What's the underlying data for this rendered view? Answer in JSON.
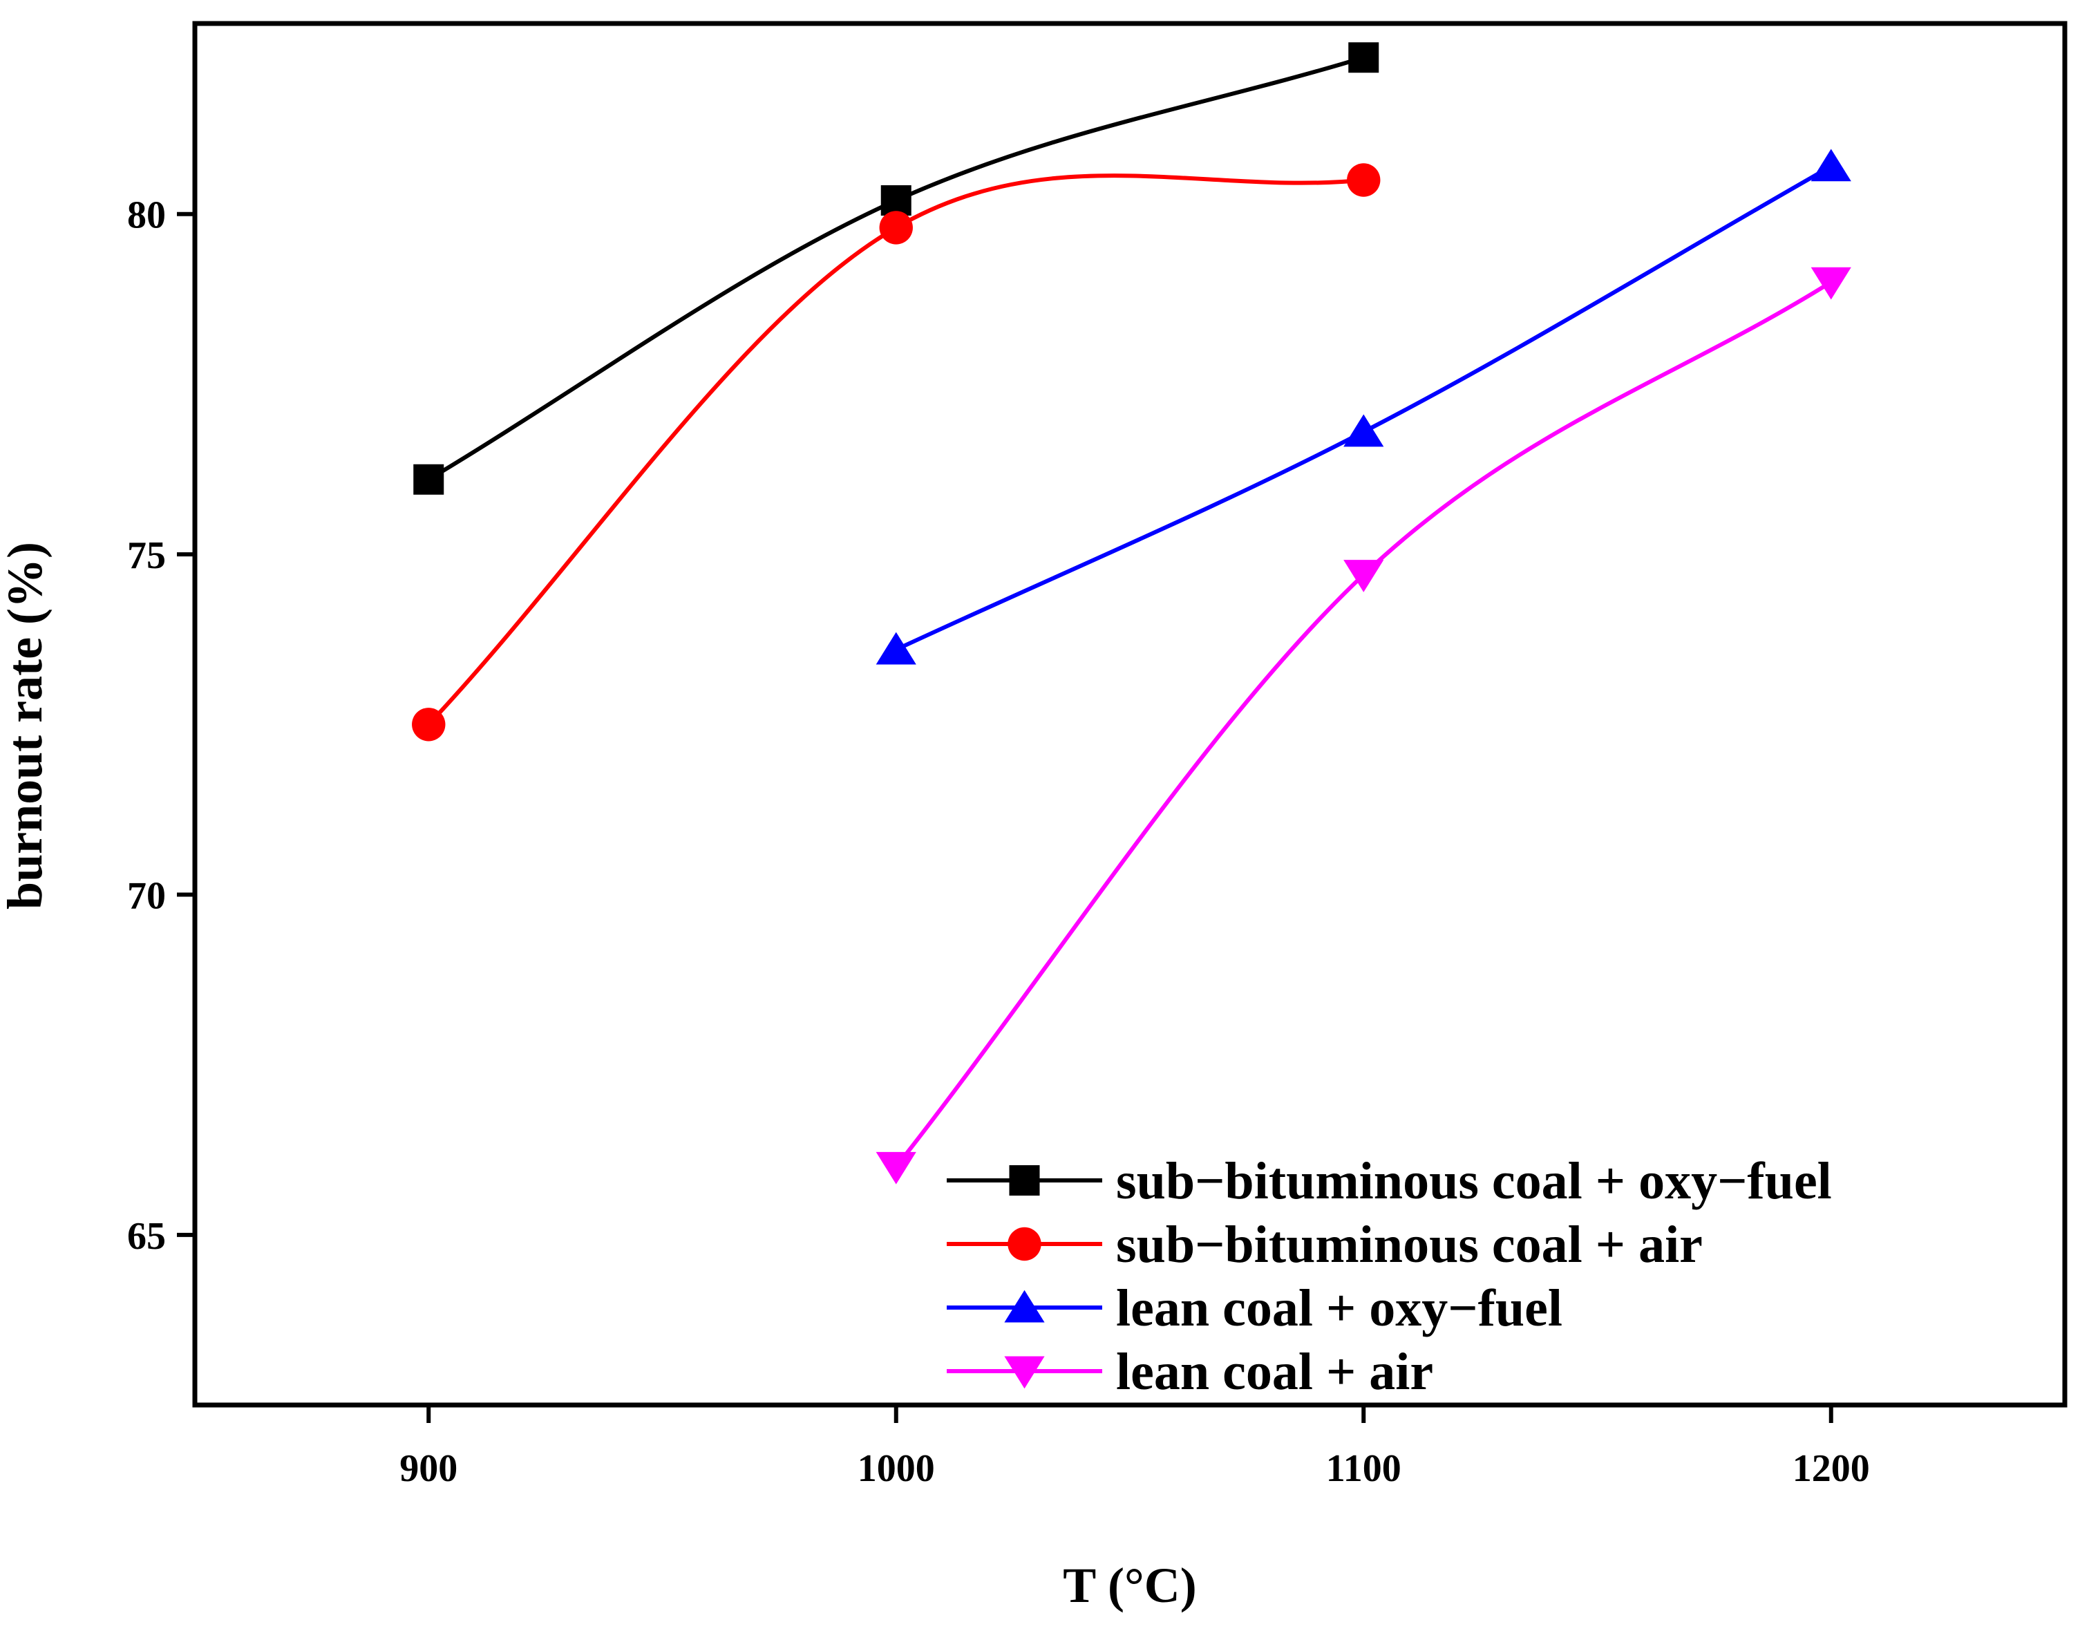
{
  "chart_data": {
    "type": "line",
    "title": "",
    "xlabel": "T (°C)",
    "ylabel": "burnout rate (%)",
    "xlim": [
      850,
      1250
    ],
    "ylim": [
      62.5,
      82.8
    ],
    "xticks": [
      900,
      1000,
      1100,
      1200
    ],
    "yticks": [
      65,
      70,
      75,
      80
    ],
    "grid": false,
    "legend_position": "bottom-right",
    "series": [
      {
        "name": "sub−bituminous coal + oxy−fuel",
        "color": "#000000",
        "marker": "square",
        "x": [
          900,
          1000,
          1100
        ],
        "y": [
          76.1,
          80.2,
          82.3
        ]
      },
      {
        "name": "sub−bituminous coal + air",
        "color": "#ff0000",
        "marker": "circle",
        "x": [
          900,
          1000,
          1100
        ],
        "y": [
          72.5,
          79.8,
          80.5
        ]
      },
      {
        "name": "lean coal  + oxy−fuel",
        "color": "#0000ff",
        "marker": "triangle-up",
        "x": [
          1000,
          1100,
          1200
        ],
        "y": [
          73.6,
          76.8,
          80.7
        ]
      },
      {
        "name": "lean coal + air",
        "color": "#ff00ff",
        "marker": "triangle-down",
        "x": [
          1000,
          1100,
          1200
        ],
        "y": [
          66.0,
          74.7,
          79.0
        ]
      }
    ]
  }
}
